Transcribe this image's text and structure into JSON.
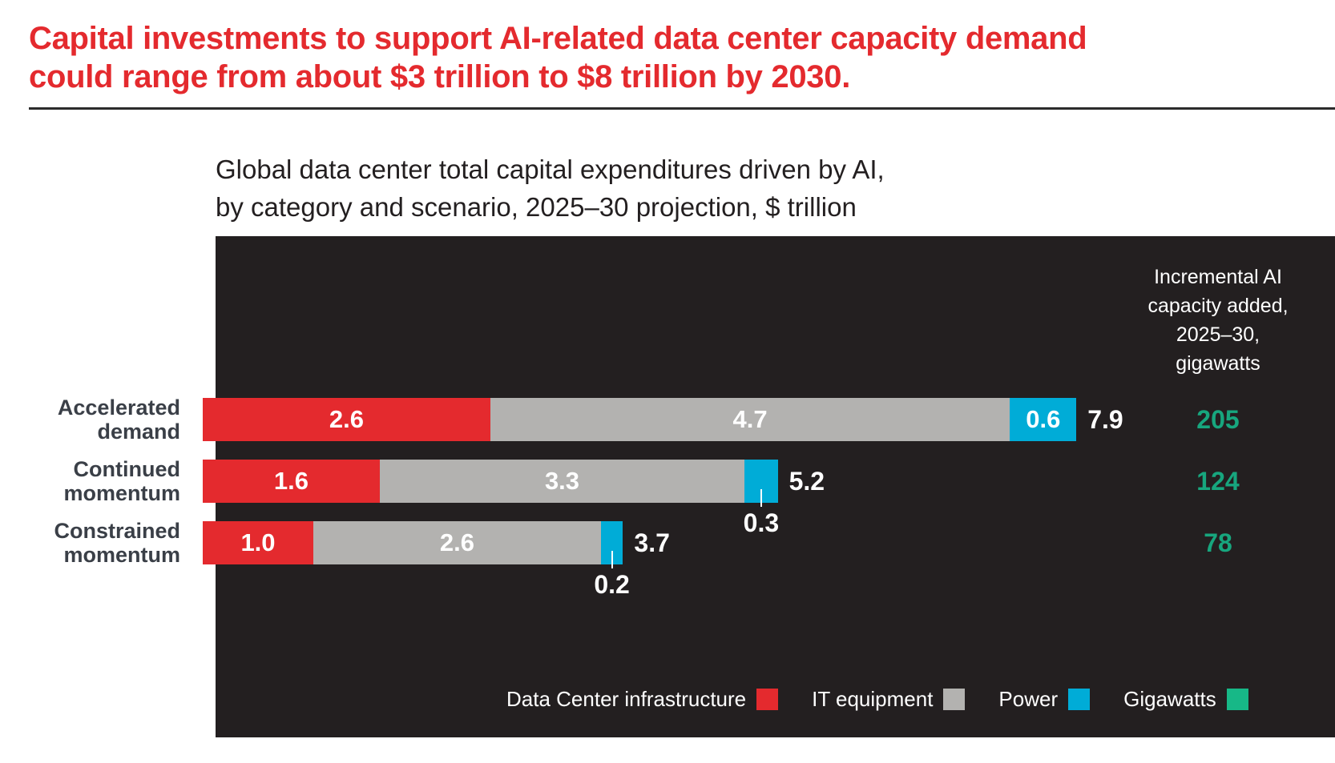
{
  "headline": {
    "line1": "Capital investments to support AI-related data center capacity demand",
    "line2": "could range from about $3 trillion to $8 trillion by 2030."
  },
  "subtitle": {
    "line1": "Global data center total capital expenditures driven by AI,",
    "line2": "by category and scenario, 2025–30 projection, $ trillion"
  },
  "gigawatts_header": [
    "Incremental AI",
    "capacity added,",
    "2025–30,",
    "gigawatts"
  ],
  "colors": {
    "data_center_infrastructure": "#e42a2e",
    "it_equipment": "#b3b2b0",
    "power": "#00acd7",
    "gigawatts": "#17b887",
    "gigawatts_text": "#17a67e",
    "panel": "#231f20",
    "headline": "#e42a2e"
  },
  "chart_data": {
    "type": "bar",
    "orientation": "horizontal",
    "stacked": true,
    "title": "Global data center total capital expenditures driven by AI, by category and scenario, 2025–30 projection, $ trillion",
    "unit": "$ trillion",
    "categories": [
      [
        "Accelerated",
        "demand"
      ],
      [
        "Continued",
        "momentum"
      ],
      [
        "Constrained",
        "momentum"
      ]
    ],
    "category_names": [
      "Accelerated demand",
      "Continued momentum",
      "Constrained momentum"
    ],
    "series": [
      {
        "name": "Data Center infrastructure",
        "key": "data_center_infrastructure",
        "values": [
          2.6,
          1.6,
          1.0
        ],
        "labels": [
          "2.6",
          "1.6",
          "1.0"
        ]
      },
      {
        "name": "IT equipment",
        "key": "it_equipment",
        "values": [
          4.7,
          3.3,
          2.6
        ],
        "labels": [
          "4.7",
          "3.3",
          "2.6"
        ]
      },
      {
        "name": "Power",
        "key": "power",
        "values": [
          0.6,
          0.3,
          0.2
        ],
        "labels": [
          "0.6",
          "0.3",
          "0.2"
        ]
      }
    ],
    "totals": [
      7.9,
      5.2,
      3.7
    ],
    "total_labels": [
      "7.9",
      "5.2",
      "3.7"
    ],
    "gigawatts": {
      "name": "Gigawatts",
      "values": [
        205,
        124,
        78
      ],
      "labels": [
        "205",
        "124",
        "78"
      ]
    },
    "xlim": [
      0,
      7.9
    ],
    "grid": false,
    "legend": {
      "placement": "bottom-right",
      "entries": [
        "Data Center infrastructure",
        "IT equipment",
        "Power",
        "Gigawatts"
      ]
    }
  }
}
